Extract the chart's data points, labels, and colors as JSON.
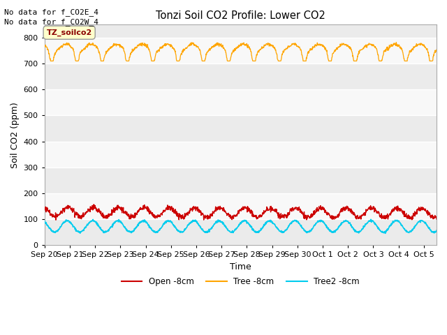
{
  "title": "Tonzi Soil CO2 Profile: Lower CO2",
  "xlabel": "Time",
  "ylabel": "Soil CO2 (ppm)",
  "ylim": [
    0,
    850
  ],
  "yticks": [
    0,
    100,
    200,
    300,
    400,
    500,
    600,
    700,
    800
  ],
  "annotation_lines": [
    "No data for f_CO2E_4",
    "No data for f_CO2W_4"
  ],
  "annotation_box_label": "TZ_soilco2",
  "annotation_box_color": "#8B0000",
  "annotation_box_bg": "#FFFFCC",
  "annotation_box_edge": "#999999",
  "x_tick_labels": [
    "Sep 20",
    "Sep 21",
    "Sep 22",
    "Sep 23",
    "Sep 24",
    "Sep 25",
    "Sep 26",
    "Sep 27",
    "Sep 28",
    "Sep 29",
    "Sep 30",
    "Oct 1",
    "Oct 2",
    "Oct 3",
    "Oct 4",
    "Oct 5"
  ],
  "tree_color": "#FFA500",
  "open_color": "#CC0000",
  "tree2_color": "#00CCEE",
  "legend_labels": [
    "Open -8cm",
    "Tree -8cm",
    "Tree2 -8cm"
  ],
  "plot_bg_color": "#EBEBEB",
  "plot_bg_color2": "#F8F8F8",
  "tree_mean": 760,
  "open_mean": 128,
  "tree2_mean": 72,
  "points_per_day": 96,
  "total_days": 15.5,
  "figsize": [
    6.4,
    4.8
  ],
  "dpi": 100
}
